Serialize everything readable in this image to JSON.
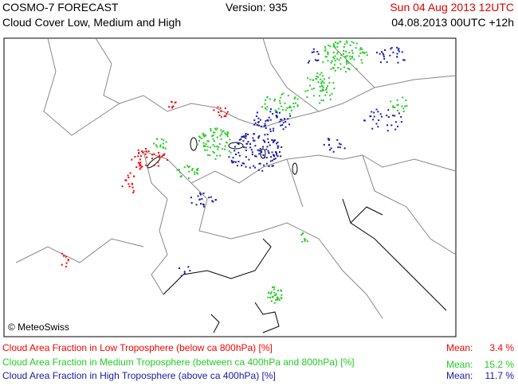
{
  "header": {
    "title": "COSMO-7 FORECAST",
    "subtitle": "Cloud Cover Low, Medium and High",
    "version": "Version: 935",
    "valid_time": "Sun 04 Aug 2013 12UTC",
    "run_time": "04.08.2013 00UTC +12h"
  },
  "map": {
    "credit": "© MeteoSwiss"
  },
  "legend": [
    {
      "label": "Cloud Area Fraction in Low Troposphere (below ca 800hPa) [%]",
      "mean_label": "Mean:",
      "mean": "3.4 %",
      "color": "#ff0000"
    },
    {
      "label": "Cloud Area Fraction in Medium Troposphere (between ca 400hPa and 800hPa) [%]",
      "mean_label": "Mean:",
      "mean": "15.2 %",
      "color": "#22cc22"
    },
    {
      "label": "Cloud Area Fraction in High Troposphere (above ca 400hPa) [%]",
      "mean_label": "Mean:",
      "mean": "11.7 %",
      "color": "#1a1aaa"
    }
  ]
}
